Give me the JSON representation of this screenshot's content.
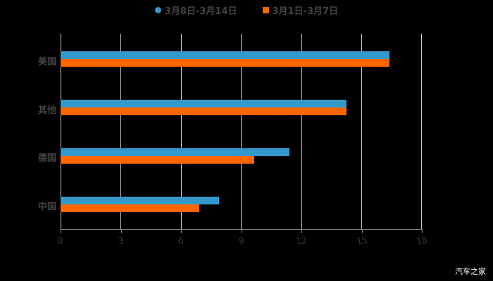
{
  "chart_data": {
    "type": "bar",
    "orientation": "horizontal",
    "title": "",
    "categories": [
      "美国",
      "其他",
      "德国",
      "中国"
    ],
    "series": [
      {
        "name": "3月8日-3月14日",
        "color": "#3399cc",
        "values": [
          16.4,
          14.25,
          11.4,
          7.9
        ]
      },
      {
        "name": "3月1日-3月7日",
        "color": "#ff6600",
        "values": [
          16.4,
          14.25,
          9.65,
          6.9
        ]
      }
    ],
    "xlabel": "",
    "ylabel": "",
    "xlim": [
      0,
      18
    ],
    "xticks": [
      "0",
      "3",
      "6",
      "9",
      "12",
      "15",
      "18"
    ],
    "grid": true,
    "legend_position": "top"
  },
  "legend": {
    "s1": "3月8日-3月14日",
    "s2": "3月1日-3月7日"
  },
  "watermark": "汽车之家"
}
